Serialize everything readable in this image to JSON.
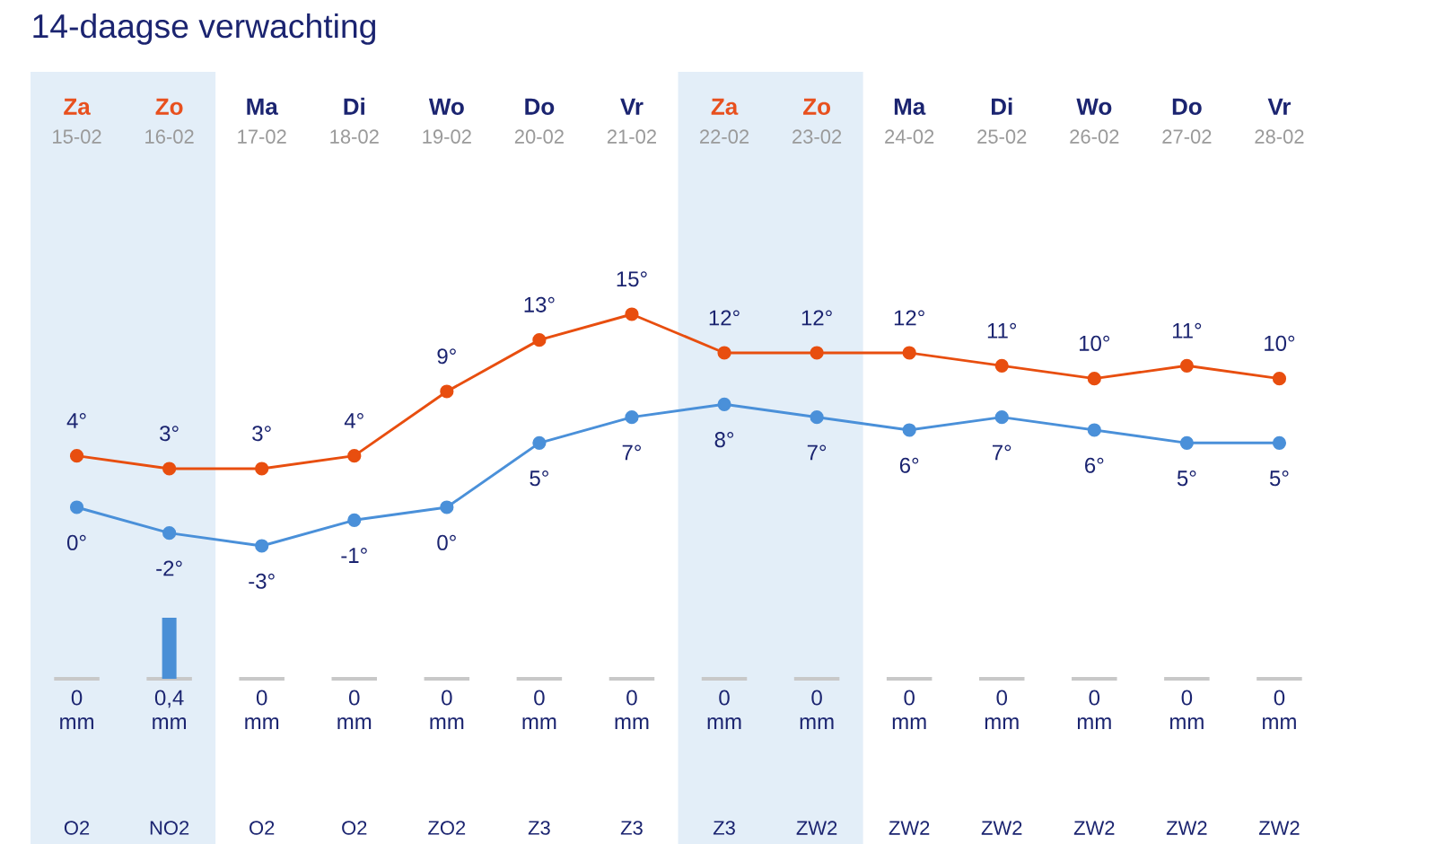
{
  "chart_data": [
    {
      "type": "line",
      "title": "14-daagse verwachting",
      "categories": [
        "**Za** 15-02",
        "**Zo** 16-02",
        "**Ma** 17-02",
        "**Di** 18-02",
        "**Wo** 19-02",
        "**Do** 20-02",
        "**Vr** 21-02",
        "**Za** 22-02",
        "**Zo** 23-02",
        "**Ma** 24-02",
        "**Di** 25-02",
        "**Wo** 26-02",
        "**Do** 27-02",
        "**Vr** 28-02"
      ],
      "series": [
        {
          "color": "#e84e0f",
          "values": [
            4,
            3,
            3,
            4,
            9,
            13,
            15,
            12,
            12,
            12,
            11,
            10,
            11,
            10
          ],
          "value_labels": [
            "4°",
            "3°",
            "3°",
            "4°",
            "9°",
            "13°",
            "15°",
            "12°",
            "12°",
            "12°",
            "11°",
            "10°",
            "11°",
            "10°"
          ]
        },
        {
          "color": "#4a90d9",
          "values": [
            0,
            -2,
            -3,
            -1,
            0,
            5,
            7,
            8,
            7,
            6,
            7,
            6,
            5,
            5
          ],
          "value_labels": [
            "0°",
            "-2°",
            "-3°",
            "-1°",
            "0°",
            "5°",
            "7°",
            "8°",
            "7°",
            "6°",
            "7°",
            "6°",
            "5°",
            "5°"
          ]
        }
      ],
      "bands": [
        {
          "axis": "x",
          "from": "**Za** 15-02",
          "to": "**Zo** 16-02",
          "color": "#e3eef8"
        },
        {
          "axis": "x",
          "from": "**Za** 22-02",
          "to": "**Zo** 23-02",
          "color": "#e3eef8"
        }
      ],
      "marker": "circle",
      "line_style": "solid"
    },
    {
      "type": "bar",
      "categories": [
        null,
        null,
        null,
        null,
        null,
        null,
        null,
        null,
        null,
        null,
        null,
        null,
        null,
        null
      ],
      "values": [
        0,
        0.4,
        0,
        0,
        0,
        0,
        0,
        0,
        0,
        0,
        0,
        0,
        0,
        0
      ],
      "value_labels": [
        "0 mm",
        "0,4 mm",
        "0 mm",
        "0 mm",
        "0 mm",
        "0 mm",
        "0 mm",
        "0 mm",
        "0 mm",
        "0 mm",
        "0 mm",
        "0 mm",
        "0 mm",
        "0 mm"
      ],
      "color": "#4a8fd6"
    },
    {
      "type": "other",
      "annotations": [
        "O2",
        "NO2",
        "O2",
        "O2",
        "ZO2",
        "Z3",
        "Z3",
        "Z3",
        "ZW2",
        "ZW2",
        "ZW2",
        "ZW2",
        "ZW2",
        "ZW2"
      ]
    }
  ]
}
